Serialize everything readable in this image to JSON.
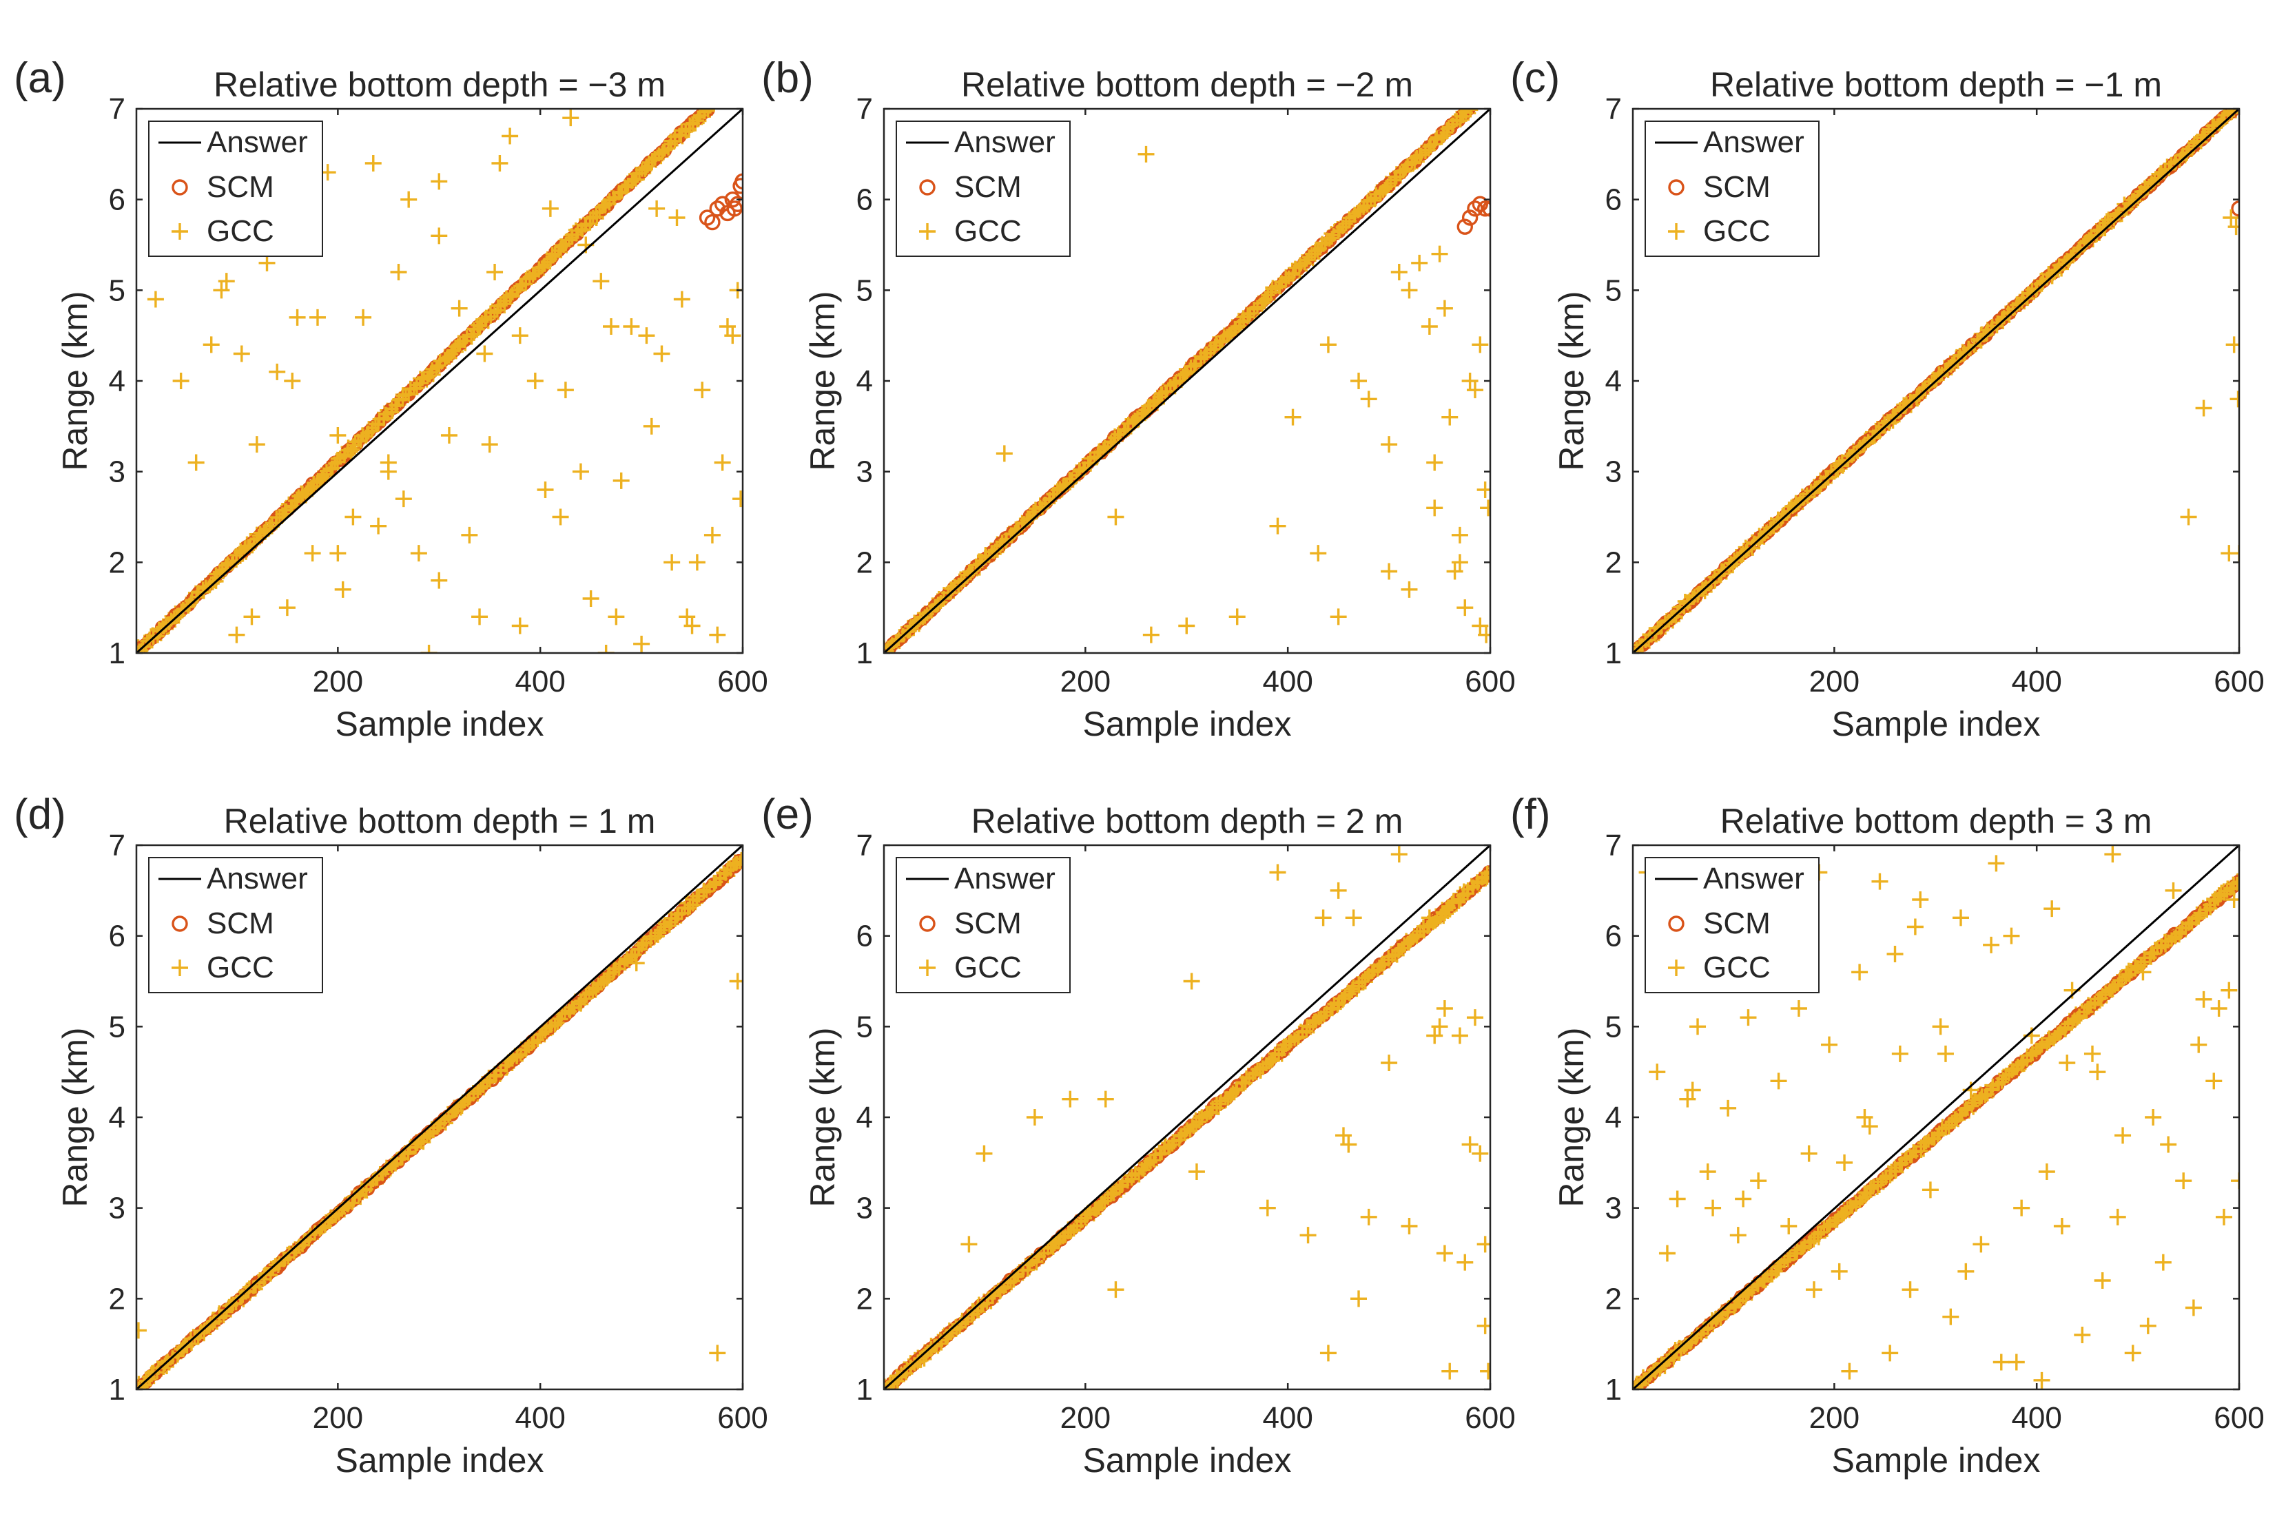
{
  "figure": {
    "legend_labels": [
      "Answer",
      "SCM",
      "GCC"
    ],
    "colors": {
      "answer": "#000000",
      "scm": "#D95319",
      "gcc": "#EDB120",
      "axis": "#262626"
    }
  },
  "chart_data": [
    {
      "type": "scatter",
      "panel_label": "(a)",
      "title": "Relative bottom depth = −3 m",
      "xlabel": "Sample index",
      "ylabel": "Range (km)",
      "xlim": [
        1,
        600
      ],
      "ylim": [
        1,
        7
      ],
      "xticks": [
        200,
        400,
        600
      ],
      "yticks": [
        1,
        2,
        3,
        4,
        5,
        6,
        7
      ],
      "legend_position": "top-left",
      "series": [
        {
          "name": "Answer",
          "kind": "line",
          "x": [
            1,
            600
          ],
          "y": [
            1,
            7
          ]
        },
        {
          "name": "SCM",
          "kind": "circle",
          "main_trend": {
            "x": [
              1,
              565
            ],
            "y": [
              1.0,
              7.0
            ]
          },
          "extra": {
            "x": [
              565,
              570,
              575,
              580,
              585,
              590,
              595,
              600,
              598,
              592
            ],
            "y": [
              5.8,
              5.75,
              5.9,
              5.95,
              5.85,
              6.0,
              5.95,
              6.2,
              6.15,
              5.9
            ]
          }
        },
        {
          "name": "GCC",
          "kind": "plus",
          "main_trend": {
            "x": [
              1,
              565
            ],
            "y": [
              1.0,
              7.0
            ]
          },
          "outliers": {
            "x": [
              20,
              45,
              60,
              75,
              90,
              105,
              120,
              130,
              140,
              155,
              160,
              170,
              180,
              190,
              200,
              205,
              215,
              225,
              240,
              250,
              260,
              270,
              280,
              290,
              300,
              310,
              320,
              330,
              340,
              350,
              360,
              370,
              380,
              395,
              410,
              420,
              430,
              440,
              450,
              460,
              470,
              480,
              490,
              500,
              510,
              520,
              530,
              540,
              550,
              560,
              570,
              580,
              590,
              598,
              85,
              115,
              175,
              235,
              265,
              300,
              345,
              405,
              445,
              475,
              505,
              535,
              555,
              575,
              595,
              100,
              150,
              200,
              250,
              300,
              355,
              380,
              425,
              465,
              515,
              545,
              585
            ],
            "y": [
              4.9,
              4.0,
              3.1,
              4.4,
              5.1,
              4.3,
              3.3,
              5.3,
              4.1,
              4.0,
              4.7,
              5.7,
              4.7,
              6.3,
              3.4,
              1.7,
              2.5,
              4.7,
              2.4,
              3.0,
              5.2,
              6.0,
              2.1,
              1.0,
              5.6,
              3.4,
              4.8,
              2.3,
              1.4,
              3.3,
              6.4,
              6.7,
              1.3,
              4.0,
              5.9,
              2.5,
              6.9,
              3.0,
              1.6,
              5.1,
              4.6,
              2.9,
              4.6,
              1.1,
              3.5,
              4.3,
              2.0,
              4.9,
              1.3,
              3.9,
              2.3,
              3.1,
              4.5,
              2.7,
              5.0,
              1.4,
              2.1,
              6.4,
              2.7,
              6.2,
              4.3,
              2.8,
              5.5,
              1.4,
              4.5,
              5.8,
              2.0,
              1.2,
              5.0,
              1.2,
              1.5,
              2.1,
              3.1,
              1.8,
              5.2,
              4.5,
              3.9,
              1.0,
              5.9,
              1.4,
              4.6
            ]
          }
        }
      ]
    },
    {
      "type": "scatter",
      "panel_label": "(b)",
      "title": "Relative bottom depth = −2 m",
      "xlabel": "Sample index",
      "ylabel": "Range (km)",
      "xlim": [
        1,
        600
      ],
      "ylim": [
        1,
        7
      ],
      "xticks": [
        200,
        400,
        600
      ],
      "yticks": [
        1,
        2,
        3,
        4,
        5,
        6,
        7
      ],
      "legend_position": "top-left",
      "series": [
        {
          "name": "Answer",
          "kind": "line",
          "x": [
            1,
            600
          ],
          "y": [
            1,
            7
          ]
        },
        {
          "name": "SCM",
          "kind": "circle",
          "main_trend": {
            "x": [
              1,
              580
            ],
            "y": [
              1.0,
              7.0
            ]
          },
          "extra": {
            "x": [
              575,
              580,
              585,
              590,
              595,
              600
            ],
            "y": [
              5.7,
              5.8,
              5.9,
              5.95,
              5.9,
              5.9
            ]
          }
        },
        {
          "name": "GCC",
          "kind": "plus",
          "main_trend": {
            "x": [
              1,
              580
            ],
            "y": [
              1.0,
              7.0
            ]
          },
          "outliers": {
            "x": [
              120,
              230,
              260,
              265,
              300,
              350,
              390,
              405,
              440,
              450,
              470,
              480,
              500,
              510,
              520,
              530,
              540,
              545,
              550,
              555,
              560,
              565,
              570,
              575,
              580,
              585,
              590,
              595,
              598,
              520,
              545,
              570,
              590,
              596,
              500,
              430
            ],
            "y": [
              3.2,
              2.5,
              6.5,
              1.2,
              1.3,
              1.4,
              2.4,
              3.6,
              4.4,
              1.4,
              4.0,
              3.8,
              3.3,
              5.2,
              5.0,
              5.3,
              4.6,
              2.6,
              5.4,
              4.8,
              3.6,
              1.9,
              2.0,
              1.5,
              4.0,
              3.9,
              4.4,
              2.8,
              2.6,
              1.7,
              3.1,
              2.3,
              1.3,
              1.2,
              1.9,
              2.1
            ]
          }
        }
      ]
    },
    {
      "type": "scatter",
      "panel_label": "(c)",
      "title": "Relative bottom depth = −1 m",
      "xlabel": "Sample index",
      "ylabel": "Range (km)",
      "xlim": [
        1,
        600
      ],
      "ylim": [
        1,
        7
      ],
      "xticks": [
        200,
        400,
        600
      ],
      "yticks": [
        1,
        2,
        3,
        4,
        5,
        6,
        7
      ],
      "legend_position": "top-left",
      "series": [
        {
          "name": "Answer",
          "kind": "line",
          "x": [
            1,
            600
          ],
          "y": [
            1,
            7
          ]
        },
        {
          "name": "SCM",
          "kind": "circle",
          "main_trend": {
            "x": [
              1,
              595
            ],
            "y": [
              1.0,
              7.0
            ]
          },
          "extra": {
            "x": [
              600
            ],
            "y": [
              5.9
            ]
          }
        },
        {
          "name": "GCC",
          "kind": "plus",
          "main_trend": {
            "x": [
              1,
              595
            ],
            "y": [
              1.0,
              7.0
            ]
          },
          "outliers": {
            "x": [
              550,
              565,
              590,
              592,
              595,
              597,
              599,
              600
            ],
            "y": [
              2.5,
              3.7,
              2.1,
              5.8,
              4.4,
              5.7,
              3.8,
              2.1
            ]
          }
        }
      ]
    },
    {
      "type": "scatter",
      "panel_label": "(d)",
      "title": "Relative bottom depth = 1 m",
      "xlabel": "Sample index",
      "ylabel": "Range (km)",
      "xlim": [
        1,
        600
      ],
      "ylim": [
        1,
        7
      ],
      "xticks": [
        200,
        400,
        600
      ],
      "yticks": [
        1,
        2,
        3,
        4,
        5,
        6,
        7
      ],
      "legend_position": "top-left",
      "series": [
        {
          "name": "Answer",
          "kind": "line",
          "x": [
            1,
            600
          ],
          "y": [
            1,
            7
          ]
        },
        {
          "name": "SCM",
          "kind": "circle",
          "main_trend": {
            "x": [
              1,
              600
            ],
            "y": [
              1.0,
              6.85
            ]
          },
          "extra": {
            "x": [],
            "y": []
          }
        },
        {
          "name": "GCC",
          "kind": "plus",
          "main_trend": {
            "x": [
              1,
              600
            ],
            "y": [
              1.0,
              6.85
            ]
          },
          "outliers": {
            "x": [
              3,
              495,
              575,
              595
            ],
            "y": [
              1.65,
              5.7,
              1.4,
              5.5
            ]
          }
        }
      ]
    },
    {
      "type": "scatter",
      "panel_label": "(e)",
      "title": "Relative bottom depth = 2 m",
      "xlabel": "Sample index",
      "ylabel": "Range (km)",
      "xlim": [
        1,
        600
      ],
      "ylim": [
        1,
        7
      ],
      "xticks": [
        200,
        400,
        600
      ],
      "yticks": [
        1,
        2,
        3,
        4,
        5,
        6,
        7
      ],
      "legend_position": "top-left",
      "series": [
        {
          "name": "Answer",
          "kind": "line",
          "x": [
            1,
            600
          ],
          "y": [
            1,
            7
          ]
        },
        {
          "name": "SCM",
          "kind": "circle",
          "main_trend": {
            "x": [
              1,
              600
            ],
            "y": [
              1.0,
              6.7
            ]
          },
          "extra": {
            "x": [],
            "y": []
          }
        },
        {
          "name": "GCC",
          "kind": "plus",
          "main_trend": {
            "x": [
              1,
              600
            ],
            "y": [
              1.0,
              6.7
            ]
          },
          "outliers": {
            "x": [
              85,
              100,
              150,
              185,
              220,
              230,
              305,
              310,
              380,
              390,
              420,
              435,
              440,
              455,
              460,
              470,
              480,
              500,
              510,
              520,
              540,
              545,
              550,
              555,
              560,
              570,
              580,
              585,
              590,
              595,
              598,
              450,
              465,
              555,
              575,
              595
            ],
            "y": [
              2.6,
              3.6,
              4.0,
              4.2,
              4.2,
              2.1,
              5.5,
              3.4,
              3.0,
              6.7,
              2.7,
              6.2,
              1.4,
              3.8,
              3.7,
              2.0,
              2.9,
              4.6,
              6.9,
              2.8,
              6.2,
              4.9,
              5.0,
              2.5,
              1.2,
              4.9,
              3.7,
              5.1,
              3.6,
              2.6,
              1.2,
              6.5,
              6.2,
              5.2,
              2.4,
              1.7
            ]
          }
        }
      ]
    },
    {
      "type": "scatter",
      "panel_label": "(f)",
      "title": "Relative bottom depth = 3 m",
      "xlabel": "Sample index",
      "ylabel": "Range (km)",
      "xlim": [
        1,
        600
      ],
      "ylim": [
        1,
        7
      ],
      "xticks": [
        200,
        400,
        600
      ],
      "yticks": [
        1,
        2,
        3,
        4,
        5,
        6,
        7
      ],
      "legend_position": "top-left",
      "series": [
        {
          "name": "Answer",
          "kind": "line",
          "x": [
            1,
            600
          ],
          "y": [
            1,
            7
          ]
        },
        {
          "name": "SCM",
          "kind": "circle",
          "main_trend": {
            "x": [
              1,
              600
            ],
            "y": [
              1.0,
              6.6
            ]
          },
          "extra": {
            "x": [],
            "y": []
          }
        },
        {
          "name": "GCC",
          "kind": "plus",
          "main_trend": {
            "x": [
              1,
              600
            ],
            "y": [
              1.0,
              6.6
            ]
          },
          "outliers": {
            "x": [
              15,
              25,
              35,
              45,
              55,
              65,
              75,
              85,
              95,
              105,
              115,
              125,
              135,
              145,
              155,
              165,
              175,
              185,
              195,
              205,
              215,
              225,
              235,
              245,
              255,
              265,
              275,
              285,
              295,
              305,
              315,
              325,
              335,
              345,
              355,
              365,
              375,
              385,
              395,
              405,
              415,
              425,
              435,
              445,
              455,
              465,
              475,
              485,
              495,
              505,
              515,
              525,
              535,
              545,
              555,
              565,
              575,
              585,
              595,
              600,
              60,
              110,
              160,
              210,
              260,
              310,
              360,
              410,
              460,
              510,
              560,
              590,
              80,
              130,
              180,
              230,
              280,
              330,
              380,
              430,
              480,
              530,
              580
            ],
            "y": [
              6.7,
              4.5,
              2.5,
              3.1,
              4.2,
              5.0,
              3.4,
              6.5,
              4.1,
              2.7,
              5.1,
              3.3,
              6.1,
              4.4,
              2.8,
              5.2,
              3.6,
              6.7,
              4.8,
              2.3,
              1.2,
              5.6,
              3.9,
              6.6,
              1.4,
              4.7,
              2.1,
              6.4,
              3.2,
              5.0,
              1.8,
              6.2,
              4.3,
              2.6,
              5.9,
              1.3,
              6.0,
              3.0,
              4.9,
              1.1,
              6.3,
              2.8,
              5.4,
              1.6,
              4.7,
              2.2,
              6.9,
              3.8,
              1.4,
              5.6,
              4.0,
              2.4,
              6.5,
              3.3,
              1.9,
              5.3,
              4.4,
              2.9,
              6.4,
              3.3,
              4.3,
              3.1,
              5.6,
              3.5,
              5.8,
              4.7,
              6.8,
              3.4,
              4.5,
              1.7,
              4.8,
              5.4,
              3.0,
              6.6,
              2.1,
              4.0,
              6.1,
              2.3,
              1.3,
              4.6,
              2.9,
              3.7,
              5.2
            ]
          }
        }
      ]
    }
  ]
}
